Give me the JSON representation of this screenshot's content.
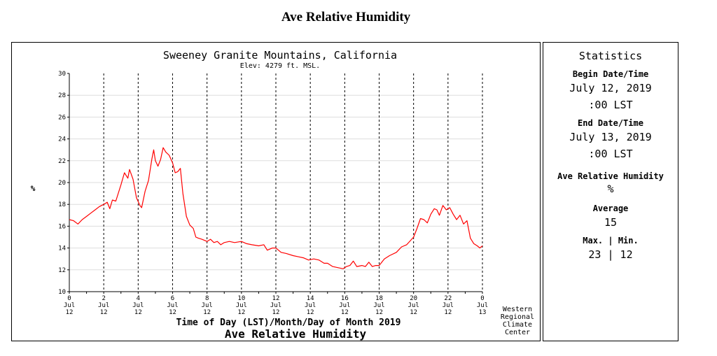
{
  "page": {
    "title": "Ave Relative Humidity"
  },
  "chart_data": {
    "type": "line",
    "title": "Sweeney Granite Mountains, California",
    "subtitle": "Elev: 4279 ft. MSL.",
    "xlabel": "Time of Day (LST)/Month/Day of Month 2019",
    "ylabel": "%",
    "chart_caption": "Ave Relative Humidity",
    "credit": [
      "Western",
      "Regional",
      "Climate",
      "Center"
    ],
    "xlim": [
      0,
      24
    ],
    "ylim": [
      10,
      30
    ],
    "yticks": [
      10,
      12,
      14,
      16,
      18,
      20,
      22,
      24,
      26,
      28,
      30
    ],
    "xticks": [
      {
        "x": 0,
        "hour": "0",
        "month": "Jul",
        "day": "12"
      },
      {
        "x": 2,
        "hour": "2",
        "month": "Jul",
        "day": "12"
      },
      {
        "x": 4,
        "hour": "4",
        "month": "Jul",
        "day": "12"
      },
      {
        "x": 6,
        "hour": "6",
        "month": "Jul",
        "day": "12"
      },
      {
        "x": 8,
        "hour": "8",
        "month": "Jul",
        "day": "12"
      },
      {
        "x": 10,
        "hour": "10",
        "month": "Jul",
        "day": "12"
      },
      {
        "x": 12,
        "hour": "12",
        "month": "Jul",
        "day": "12"
      },
      {
        "x": 14,
        "hour": "14",
        "month": "Jul",
        "day": "12"
      },
      {
        "x": 16,
        "hour": "16",
        "month": "Jul",
        "day": "12"
      },
      {
        "x": 18,
        "hour": "18",
        "month": "Jul",
        "day": "12"
      },
      {
        "x": 20,
        "hour": "20",
        "month": "Jul",
        "day": "12"
      },
      {
        "x": 22,
        "hour": "22",
        "month": "Jul",
        "day": "12"
      },
      {
        "x": 24,
        "hour": "0",
        "month": "Jul",
        "day": "13"
      }
    ],
    "series": [
      {
        "name": "Relative Humidity",
        "color": "#ff0000",
        "points": [
          [
            0,
            16.6
          ],
          [
            0.25,
            16.5
          ],
          [
            0.5,
            16.2
          ],
          [
            0.75,
            16.6
          ],
          [
            1,
            16.9
          ],
          [
            1.25,
            17.2
          ],
          [
            1.5,
            17.5
          ],
          [
            1.75,
            17.8
          ],
          [
            2,
            18.0
          ],
          [
            2.2,
            18.2
          ],
          [
            2.35,
            17.6
          ],
          [
            2.5,
            18.4
          ],
          [
            2.7,
            18.3
          ],
          [
            3,
            19.8
          ],
          [
            3.2,
            20.9
          ],
          [
            3.4,
            20.4
          ],
          [
            3.5,
            21.2
          ],
          [
            3.7,
            20.3
          ],
          [
            3.9,
            18.6
          ],
          [
            4.1,
            17.9
          ],
          [
            4.2,
            17.7
          ],
          [
            4.4,
            19.2
          ],
          [
            4.6,
            20.2
          ],
          [
            4.8,
            22.2
          ],
          [
            4.9,
            23.0
          ],
          [
            5.0,
            22.0
          ],
          [
            5.15,
            21.5
          ],
          [
            5.3,
            22.1
          ],
          [
            5.45,
            23.2
          ],
          [
            5.6,
            22.8
          ],
          [
            5.8,
            22.5
          ],
          [
            6.0,
            21.8
          ],
          [
            6.15,
            20.9
          ],
          [
            6.3,
            21.0
          ],
          [
            6.45,
            21.3
          ],
          [
            6.6,
            19.0
          ],
          [
            6.8,
            16.9
          ],
          [
            7.0,
            16.1
          ],
          [
            7.2,
            15.8
          ],
          [
            7.35,
            15.0
          ],
          [
            7.5,
            14.9
          ],
          [
            7.7,
            14.8
          ],
          [
            8,
            14.6
          ],
          [
            8.2,
            14.8
          ],
          [
            8.4,
            14.5
          ],
          [
            8.6,
            14.6
          ],
          [
            8.8,
            14.3
          ],
          [
            9,
            14.5
          ],
          [
            9.3,
            14.6
          ],
          [
            9.6,
            14.5
          ],
          [
            10,
            14.6
          ],
          [
            10.3,
            14.4
          ],
          [
            10.6,
            14.3
          ],
          [
            11,
            14.2
          ],
          [
            11.3,
            14.3
          ],
          [
            11.5,
            13.8
          ],
          [
            11.8,
            14.0
          ],
          [
            12,
            14.0
          ],
          [
            12.3,
            13.6
          ],
          [
            12.6,
            13.5
          ],
          [
            13,
            13.3
          ],
          [
            13.3,
            13.2
          ],
          [
            13.6,
            13.1
          ],
          [
            13.9,
            12.9
          ],
          [
            14.2,
            13.0
          ],
          [
            14.5,
            12.9
          ],
          [
            14.8,
            12.6
          ],
          [
            15,
            12.6
          ],
          [
            15.3,
            12.3
          ],
          [
            15.6,
            12.2
          ],
          [
            15.9,
            12.1
          ],
          [
            16.1,
            12.3
          ],
          [
            16.3,
            12.4
          ],
          [
            16.5,
            12.8
          ],
          [
            16.7,
            12.3
          ],
          [
            17,
            12.4
          ],
          [
            17.2,
            12.3
          ],
          [
            17.4,
            12.7
          ],
          [
            17.6,
            12.3
          ],
          [
            17.8,
            12.4
          ],
          [
            18,
            12.4
          ],
          [
            18.3,
            13.0
          ],
          [
            18.6,
            13.3
          ],
          [
            19,
            13.6
          ],
          [
            19.3,
            14.1
          ],
          [
            19.6,
            14.3
          ],
          [
            20,
            15.0
          ],
          [
            20.2,
            15.8
          ],
          [
            20.4,
            16.7
          ],
          [
            20.6,
            16.6
          ],
          [
            20.8,
            16.3
          ],
          [
            21.0,
            17.1
          ],
          [
            21.2,
            17.6
          ],
          [
            21.35,
            17.5
          ],
          [
            21.5,
            17.0
          ],
          [
            21.7,
            17.9
          ],
          [
            21.9,
            17.5
          ],
          [
            22.1,
            17.7
          ],
          [
            22.3,
            17.1
          ],
          [
            22.5,
            16.6
          ],
          [
            22.7,
            17.0
          ],
          [
            22.9,
            16.2
          ],
          [
            23.1,
            16.5
          ],
          [
            23.3,
            14.9
          ],
          [
            23.5,
            14.4
          ],
          [
            23.7,
            14.2
          ],
          [
            23.85,
            14.0
          ],
          [
            24,
            14.2
          ]
        ]
      }
    ]
  },
  "stats": {
    "header": "Statistics",
    "begin_label": "Begin Date/Time",
    "begin_date": "July 12, 2019",
    "begin_time": ":00 LST",
    "end_label": "End Date/Time",
    "end_date": "July 13, 2019",
    "end_time": ":00 LST",
    "variable_label": "Ave Relative Humidity",
    "variable_unit": "%",
    "average_label": "Average",
    "average_value": "15",
    "maxmin_label": "Max. | Min.",
    "maxmin_value": "23 | 12"
  }
}
